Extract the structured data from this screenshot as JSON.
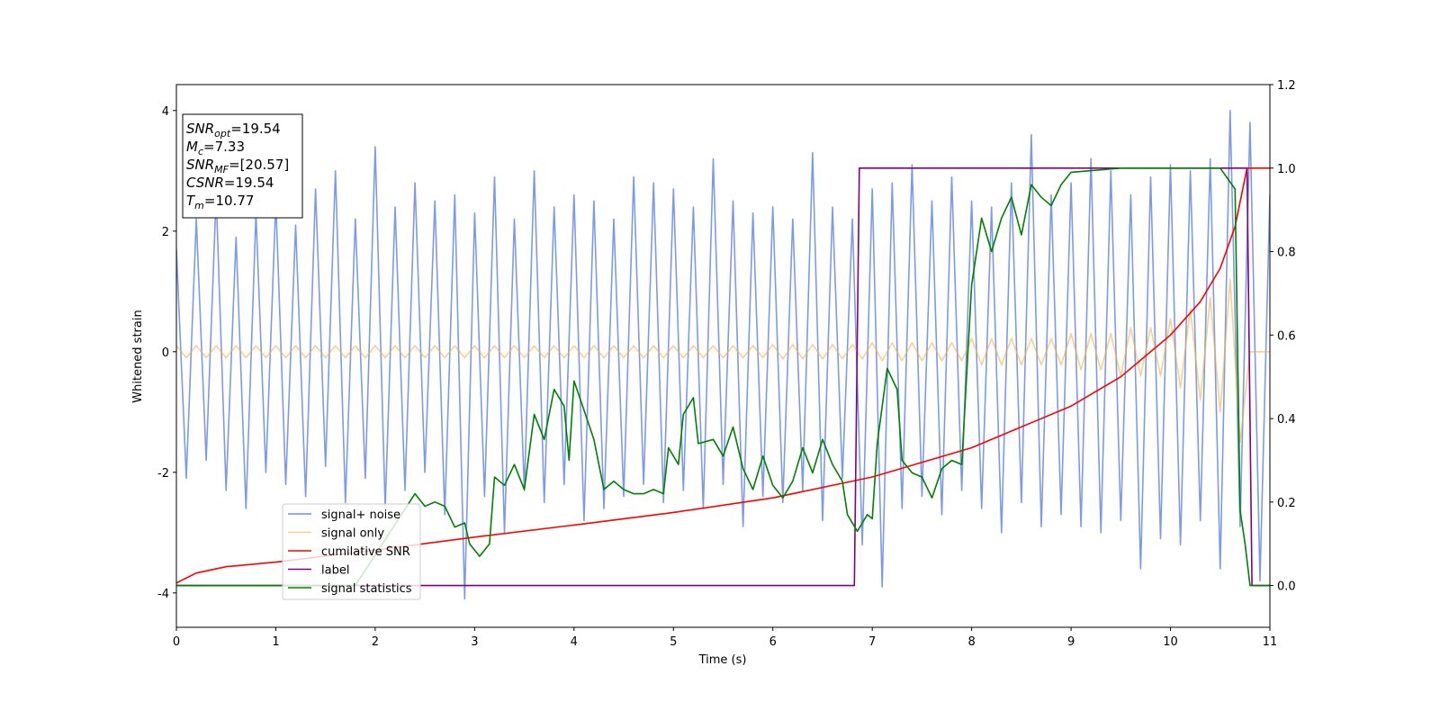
{
  "chart_data": {
    "type": "line",
    "xlabel": "Time (s)",
    "ylabel": "Whitened strain",
    "xlim": [
      0,
      11
    ],
    "xticks": [
      0,
      1,
      2,
      3,
      4,
      5,
      6,
      7,
      8,
      9,
      10,
      11
    ],
    "ylim": [
      -4.57,
      4.43
    ],
    "yticks": [
      -4,
      -2,
      0,
      2,
      4
    ],
    "y2lim": [
      -0.1,
      1.2
    ],
    "y2ticks": [
      {
        "value": 0,
        "label": "0.0"
      },
      0.2,
      0.4,
      0.6,
      0.8,
      {
        "value": 1,
        "label": "1.0"
      },
      1.2
    ],
    "legend": "lower left",
    "annotations": [
      {
        "symbol": "SNR",
        "sub": "opt",
        "text": "=19.54"
      },
      {
        "symbol": "M",
        "sub": "c",
        "text": "=7.33"
      },
      {
        "symbol": "SNR",
        "sub": "MF",
        "text": "=[20.57]"
      },
      {
        "symbol": "CSNR",
        "sub": null,
        "text": "=19.54"
      },
      {
        "symbol": "T",
        "sub": "m",
        "text": "=10.77"
      }
    ],
    "series": [
      {
        "name": "signal+ noise",
        "color": "#6f8fe6",
        "x": [
          0,
          0.1,
          0.2,
          0.3,
          0.4,
          0.5,
          0.6,
          0.7,
          0.8,
          0.9,
          1,
          1.1,
          1.2,
          1.3,
          1.4,
          1.5,
          1.6,
          1.7,
          1.8,
          1.9,
          2,
          2.1,
          2.2,
          2.3,
          2.4,
          2.5,
          2.6,
          2.7,
          2.8,
          2.9,
          3,
          3.1,
          3.2,
          3.3,
          3.4,
          3.5,
          3.6,
          3.7,
          3.8,
          3.9,
          4,
          4.1,
          4.2,
          4.3,
          4.4,
          4.5,
          4.6,
          4.7,
          4.8,
          4.9,
          5,
          5.1,
          5.2,
          5.3,
          5.4,
          5.5,
          5.6,
          5.7,
          5.8,
          5.9,
          6,
          6.1,
          6.2,
          6.3,
          6.4,
          6.5,
          6.6,
          6.7,
          6.8,
          6.9,
          7,
          7.1,
          7.2,
          7.3,
          7.4,
          7.5,
          7.6,
          7.7,
          7.8,
          7.9,
          8,
          8.1,
          8.2,
          8.3,
          8.4,
          8.5,
          8.6,
          8.7,
          8.8,
          8.9,
          9,
          9.1,
          9.2,
          9.3,
          9.4,
          9.5,
          9.6,
          9.7,
          9.8,
          9.9,
          10,
          10.1,
          10.2,
          10.3,
          10.4,
          10.5,
          10.6,
          10.7,
          10.8,
          10.9,
          11
        ],
        "values": [
          1.7,
          -2.1,
          2.2,
          -1.8,
          2.6,
          -2.3,
          1.9,
          -2.6,
          2.3,
          -2.0,
          2.5,
          -2.2,
          2.1,
          -2.4,
          2.7,
          -1.9,
          3.0,
          -2.5,
          2.2,
          -2.1,
          3.4,
          -2.6,
          2.4,
          -2.3,
          2.8,
          -2.0,
          2.5,
          -2.7,
          2.6,
          -4.1,
          2.3,
          -2.4,
          2.9,
          -3.0,
          2.2,
          -2.3,
          3.0,
          -2.5,
          2.4,
          -2.2,
          2.6,
          -2.8,
          2.5,
          -2.6,
          2.2,
          -2.4,
          2.9,
          -2.2,
          2.8,
          -2.5,
          2.7,
          -2.3,
          2.4,
          -2.6,
          3.2,
          -2.2,
          2.5,
          -2.9,
          2.3,
          -2.4,
          2.4,
          -2.5,
          2.2,
          -2.3,
          3.3,
          -2.8,
          2.4,
          -2.1,
          2.2,
          -3.2,
          2.7,
          -3.9,
          2.8,
          -2.6,
          3.1,
          -2.4,
          2.5,
          -2.7,
          2.9,
          -2.3,
          2.5,
          -2.6,
          2.4,
          -3.0,
          2.8,
          -2.5,
          3.6,
          -2.9,
          2.6,
          -2.7,
          2.8,
          -2.9,
          3.2,
          -3.0,
          3.0,
          -2.8,
          2.6,
          -3.6,
          2.9,
          -3.1,
          3.1,
          -3.2,
          3.0,
          -2.8,
          3.2,
          -3.6,
          4.0,
          -2.9,
          3.8,
          -3.8,
          2.6
        ]
      },
      {
        "name": "signal only",
        "color": "#f5b040",
        "x": [
          0,
          0.1,
          0.2,
          0.3,
          0.4,
          0.5,
          0.6,
          0.7,
          0.8,
          0.9,
          1,
          1.1,
          1.2,
          1.3,
          1.4,
          1.5,
          1.6,
          1.7,
          1.8,
          1.9,
          2,
          2.1,
          2.2,
          2.3,
          2.4,
          2.5,
          2.6,
          2.7,
          2.8,
          2.9,
          3,
          3.1,
          3.2,
          3.3,
          3.4,
          3.5,
          3.6,
          3.7,
          3.8,
          3.9,
          4,
          4.1,
          4.2,
          4.3,
          4.4,
          4.5,
          4.6,
          4.7,
          4.8,
          4.9,
          5,
          5.1,
          5.2,
          5.3,
          5.4,
          5.5,
          5.6,
          5.7,
          5.8,
          5.9,
          6,
          6.1,
          6.2,
          6.3,
          6.4,
          6.5,
          6.6,
          6.7,
          6.8,
          6.9,
          7,
          7.1,
          7.2,
          7.3,
          7.4,
          7.5,
          7.6,
          7.7,
          7.8,
          7.9,
          8,
          8.1,
          8.2,
          8.3,
          8.4,
          8.5,
          8.6,
          8.7,
          8.8,
          8.9,
          9,
          9.1,
          9.2,
          9.3,
          9.4,
          9.5,
          9.6,
          9.7,
          9.8,
          9.9,
          10,
          10.1,
          10.2,
          10.3,
          10.4,
          10.5,
          10.6,
          10.7,
          10.8,
          10.9,
          11
        ],
        "values": [
          0.1,
          -0.1,
          0.1,
          -0.1,
          0.1,
          -0.1,
          0.1,
          -0.1,
          0.1,
          -0.1,
          0.1,
          -0.1,
          0.1,
          -0.1,
          0.1,
          -0.1,
          0.1,
          -0.1,
          0.1,
          -0.1,
          0.1,
          -0.1,
          0.1,
          -0.1,
          0.1,
          -0.1,
          0.1,
          -0.1,
          0.1,
          -0.1,
          0.1,
          -0.1,
          0.1,
          -0.1,
          0.1,
          -0.1,
          0.1,
          -0.1,
          0.1,
          -0.1,
          0.1,
          -0.1,
          0.1,
          -0.1,
          0.1,
          -0.1,
          0.1,
          -0.1,
          0.1,
          -0.1,
          0.1,
          -0.1,
          0.1,
          -0.1,
          0.1,
          -0.1,
          0.1,
          -0.1,
          0.1,
          -0.1,
          0.12,
          -0.12,
          0.12,
          -0.12,
          0.12,
          -0.12,
          0.12,
          -0.12,
          0.12,
          -0.12,
          0.15,
          -0.15,
          0.15,
          -0.15,
          0.15,
          -0.15,
          0.15,
          -0.15,
          0.15,
          -0.15,
          0.22,
          -0.22,
          0.22,
          -0.22,
          0.22,
          -0.22,
          0.22,
          -0.22,
          0.22,
          -0.22,
          0.3,
          -0.3,
          0.3,
          -0.3,
          0.3,
          -0.4,
          0.4,
          -0.4,
          0.4,
          -0.4,
          0.55,
          -0.6,
          0.7,
          -0.8,
          0.9,
          -1.0,
          1.2,
          -1.5,
          0,
          0,
          0
        ]
      },
      {
        "name": "cumilative SNR",
        "color": "#ff0000",
        "axis": "y2",
        "x": [
          0,
          0.2,
          0.5,
          1,
          2,
          3,
          4,
          5,
          6,
          7,
          8,
          9,
          9.5,
          10,
          10.3,
          10.5,
          10.65,
          10.77,
          11
        ],
        "values": [
          0.006,
          0.03,
          0.045,
          0.056,
          0.085,
          0.116,
          0.145,
          0.175,
          0.21,
          0.26,
          0.33,
          0.43,
          0.5,
          0.6,
          0.68,
          0.76,
          0.86,
          1.0,
          1.0
        ]
      },
      {
        "name": "label",
        "color": "#800080",
        "axis": "y2",
        "x": [
          0,
          6.82,
          6.87,
          10.77,
          10.82,
          11
        ],
        "values": [
          0,
          0,
          1,
          1,
          0,
          0
        ]
      },
      {
        "name": "signal statistics",
        "color": "#008000",
        "axis": "y2",
        "x": [
          0,
          1.8,
          2.4,
          2.5,
          2.6,
          2.7,
          2.8,
          2.9,
          2.95,
          3.05,
          3.15,
          3.2,
          3.3,
          3.4,
          3.5,
          3.6,
          3.7,
          3.8,
          3.9,
          3.95,
          4.0,
          4.1,
          4.2,
          4.3,
          4.4,
          4.5,
          4.6,
          4.7,
          4.8,
          4.9,
          4.95,
          5.05,
          5.1,
          5.2,
          5.25,
          5.4,
          5.5,
          5.6,
          5.7,
          5.8,
          5.9,
          6.0,
          6.1,
          6.2,
          6.3,
          6.4,
          6.5,
          6.6,
          6.7,
          6.75,
          6.85,
          6.95,
          7.0,
          7.05,
          7.15,
          7.25,
          7.3,
          7.4,
          7.5,
          7.6,
          7.7,
          7.8,
          7.9,
          8.0,
          8.1,
          8.2,
          8.3,
          8.4,
          8.5,
          8.6,
          8.7,
          8.8,
          8.9,
          9.0,
          9.5,
          10.5,
          10.65,
          10.7,
          10.75,
          10.8,
          11
        ],
        "values": [
          0,
          0,
          0.22,
          0.19,
          0.2,
          0.19,
          0.14,
          0.15,
          0.1,
          0.07,
          0.1,
          0.26,
          0.24,
          0.29,
          0.23,
          0.41,
          0.35,
          0.47,
          0.43,
          0.3,
          0.49,
          0.42,
          0.35,
          0.23,
          0.25,
          0.23,
          0.22,
          0.22,
          0.23,
          0.22,
          0.33,
          0.29,
          0.41,
          0.45,
          0.34,
          0.35,
          0.31,
          0.38,
          0.28,
          0.23,
          0.31,
          0.24,
          0.21,
          0.25,
          0.33,
          0.27,
          0.35,
          0.29,
          0.25,
          0.17,
          0.13,
          0.17,
          0.16,
          0.34,
          0.52,
          0.47,
          0.3,
          0.27,
          0.26,
          0.21,
          0.28,
          0.3,
          0.29,
          0.72,
          0.88,
          0.8,
          0.88,
          0.93,
          0.84,
          0.96,
          0.93,
          0.91,
          0.96,
          0.99,
          1.0,
          1.0,
          0.95,
          0.18,
          0.1,
          0,
          0
        ]
      }
    ]
  }
}
